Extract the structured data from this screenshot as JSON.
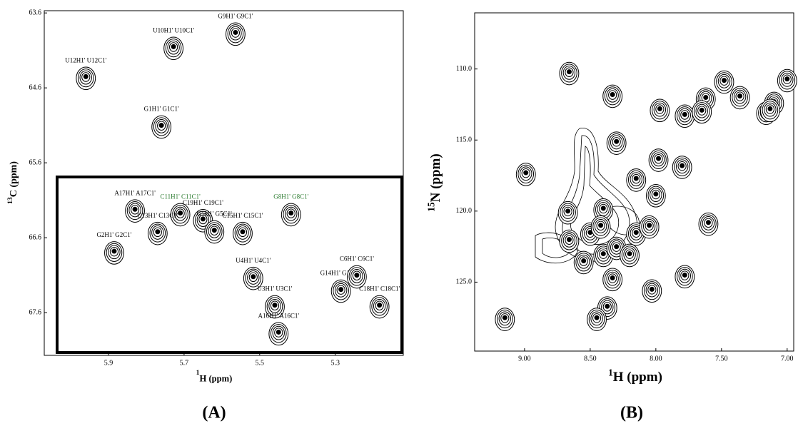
{
  "chart_data": [
    {
      "type": "scatter",
      "panel_label": "(A)",
      "xlabel_sup": "1",
      "xlabel": "H (ppm)",
      "ylabel_sup": "13",
      "ylabel": "C (ppm)",
      "xlim": [
        6.07,
        5.12
      ],
      "ylim": [
        63.57,
        68.17
      ],
      "xticks": [
        5.9,
        5.7,
        5.5,
        5.3
      ],
      "yticks": [
        63.6,
        64.6,
        65.6,
        66.6,
        67.6
      ],
      "x": [
        5.564,
        5.728,
        5.96,
        5.76,
        5.83,
        5.71,
        5.65,
        5.62,
        5.545,
        5.417,
        5.77,
        5.885,
        5.517,
        5.46,
        5.285,
        5.243,
        5.183,
        5.45
      ],
      "values": [
        63.86,
        64.05,
        64.45,
        65.1,
        66.22,
        66.27,
        66.35,
        66.5,
        66.52,
        66.27,
        66.52,
        66.78,
        67.12,
        67.5,
        67.29,
        67.1,
        67.5,
        67.86
      ],
      "labels": [
        "G9H1' G9C1'",
        "U10H1' U10C1'",
        "U12H1' U12C1'",
        "G1H1' G1C1'",
        "A17H1' A17C1'",
        "C11H1' C11C1'",
        "C19H1' C19C1'",
        "G5H1' G5C1'",
        "C15H1' C15C1'",
        "G8H1' G8C1'",
        "C13H1' C13C1'",
        "G2H1' G2C1'",
        "U4H1' U4C1'",
        "U3H1' U3C1'",
        "G14H1' G14C1'",
        "C6H1' C6C1'",
        "C18H1' C18C1'",
        "A16H1' A16C1'"
      ],
      "label_colors": [
        "#000",
        "#000",
        "#000",
        "#000",
        "#000",
        "#2e7d32",
        "#000",
        "#000",
        "#000",
        "#2e7d32",
        "#000",
        "#000",
        "#000",
        "#000",
        "#000",
        "#000",
        "#000",
        "#000"
      ]
    },
    {
      "type": "scatter",
      "panel_label": "(B)",
      "xlabel_sup": "1",
      "xlabel": "H (ppm)",
      "ylabel_sup": "15",
      "ylabel": "N (ppm)",
      "xlim": [
        9.38,
        6.95
      ],
      "ylim": [
        106.05,
        129.85
      ],
      "xticks": [
        {
          "value": 9,
          "label": "9.00"
        },
        {
          "value": 8.5,
          "label": "8.50"
        },
        {
          "value": 8,
          "label": "8.00"
        },
        {
          "value": 7.5,
          "label": "7.50"
        },
        {
          "value": 7,
          "label": "7.00"
        }
      ],
      "yticks": [
        {
          "value": 110,
          "label": "110.0"
        },
        {
          "value": 115,
          "label": "115.0"
        },
        {
          "value": 120,
          "label": "120.0"
        },
        {
          "value": 125,
          "label": "125.0"
        }
      ],
      "x": [
        8.66,
        8.33,
        7.97,
        7.78,
        7.62,
        7.65,
        7.48,
        7.36,
        7.16,
        7.1,
        7.13,
        7.0,
        8.99,
        8.3,
        7.98,
        8.15,
        7.8,
        8.67,
        8.4,
        8.0,
        7.6,
        8.66,
        8.5,
        8.4,
        8.3,
        8.15,
        8.05,
        8.55,
        8.42,
        8.2,
        7.78,
        8.03,
        8.33,
        8.37,
        9.15,
        8.45
      ],
      "values": [
        110.2,
        111.8,
        112.8,
        113.2,
        112.0,
        112.9,
        110.8,
        111.9,
        113.0,
        112.3,
        112.8,
        110.7,
        117.3,
        115.1,
        116.3,
        117.7,
        116.8,
        120.0,
        119.8,
        118.8,
        120.8,
        122.0,
        121.5,
        123.0,
        122.5,
        121.5,
        121.0,
        123.5,
        121.0,
        123.0,
        124.5,
        125.5,
        124.7,
        126.7,
        127.5,
        127.5
      ]
    }
  ]
}
